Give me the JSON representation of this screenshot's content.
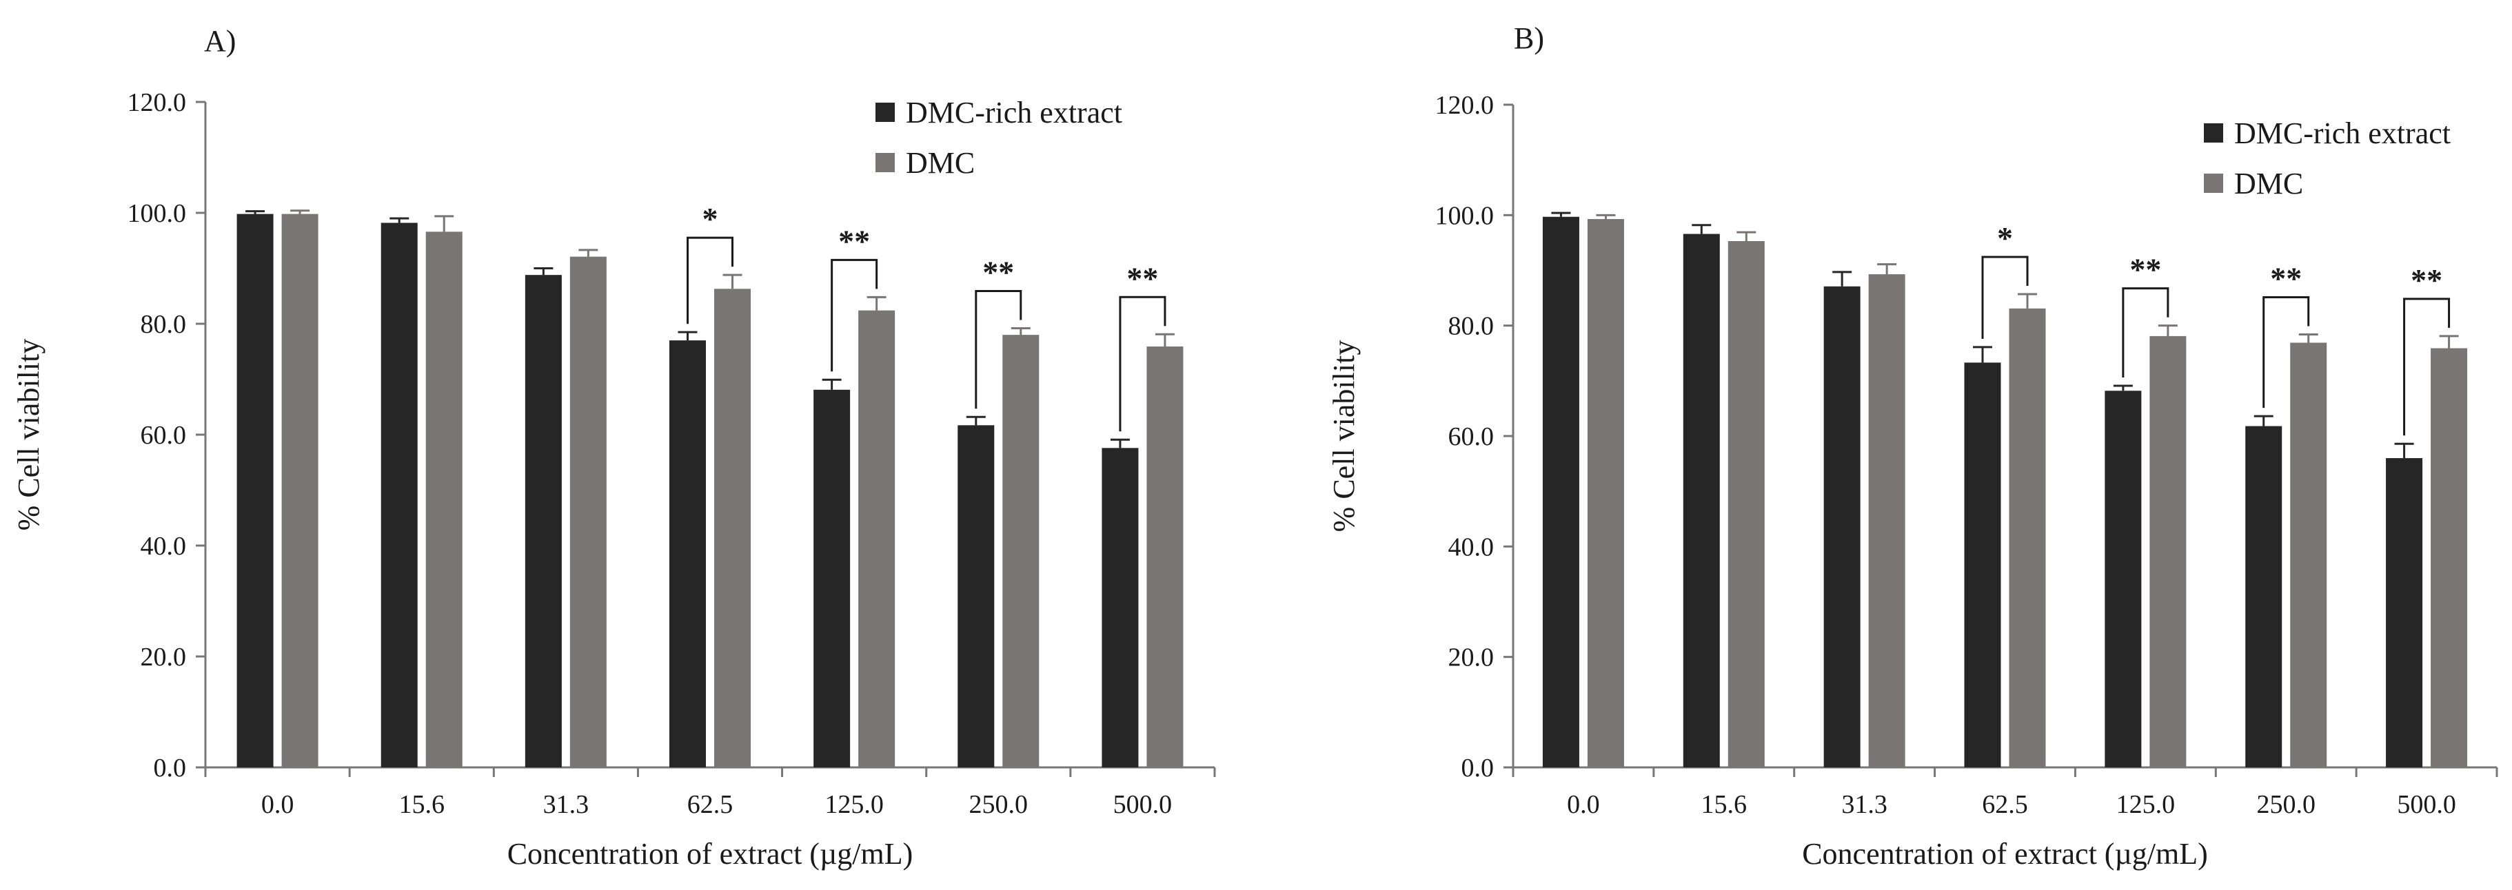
{
  "chart_data": [
    {
      "type": "bar",
      "panel_label": "A)",
      "title": "",
      "xlabel": "Concentration of extract (µg/mL)",
      "ylabel": "% Cell viability",
      "ylim": [
        0,
        120
      ],
      "yticks": [
        "0.0",
        "20.0",
        "40.0",
        "60.0",
        "80.0",
        "100.0",
        "120.0"
      ],
      "grid": false,
      "legend_position": "top-right",
      "categories": [
        "0.0",
        "15.6",
        "31.3",
        "62.5",
        "125.0",
        "250.0",
        "500.0"
      ],
      "series": [
        {
          "name": "DMC-rich extract",
          "color": "#262626",
          "values": [
            99.8,
            98.2,
            88.8,
            77.0,
            68.1,
            61.7,
            57.6
          ],
          "errors": [
            0.5,
            0.8,
            1.2,
            1.5,
            1.8,
            1.5,
            1.5
          ]
        },
        {
          "name": "DMC",
          "color": "#7a7575",
          "values": [
            99.8,
            96.6,
            92.1,
            86.3,
            82.4,
            78.0,
            75.9
          ],
          "errors": [
            0.6,
            2.8,
            1.2,
            2.5,
            2.4,
            1.2,
            2.2
          ]
        }
      ],
      "significance": [
        {
          "category": "62.5",
          "label": "*"
        },
        {
          "category": "125.0",
          "label": "**"
        },
        {
          "category": "250.0",
          "label": "**"
        },
        {
          "category": "500.0",
          "label": "**"
        }
      ]
    },
    {
      "type": "bar",
      "panel_label": "B)",
      "title": "",
      "xlabel": "Concentration of extract (µg/mL)",
      "ylabel": "% Cell viability",
      "ylim": [
        0,
        120
      ],
      "yticks": [
        "0.0",
        "20.0",
        "40.0",
        "60.0",
        "80.0",
        "100.0",
        "120.0"
      ],
      "grid": false,
      "legend_position": "top-right",
      "categories": [
        "0.0",
        "15.6",
        "31.3",
        "62.5",
        "125.0",
        "250.0",
        "500.0"
      ],
      "series": [
        {
          "name": "DMC-rich extract",
          "color": "#262626",
          "values": [
            99.7,
            96.6,
            87.1,
            73.3,
            68.2,
            61.8,
            56.0
          ],
          "errors": [
            0.7,
            1.6,
            2.6,
            2.8,
            0.9,
            1.8,
            2.6
          ]
        },
        {
          "name": "DMC",
          "color": "#7a7575",
          "values": [
            99.3,
            95.3,
            89.3,
            83.1,
            78.1,
            76.9,
            75.9
          ],
          "errors": [
            0.7,
            1.6,
            1.8,
            2.6,
            1.9,
            1.5,
            2.2
          ]
        }
      ],
      "significance": [
        {
          "category": "62.5",
          "label": "*"
        },
        {
          "category": "125.0",
          "label": "**"
        },
        {
          "category": "250.0",
          "label": "**"
        },
        {
          "category": "500.0",
          "label": "**"
        }
      ]
    }
  ]
}
